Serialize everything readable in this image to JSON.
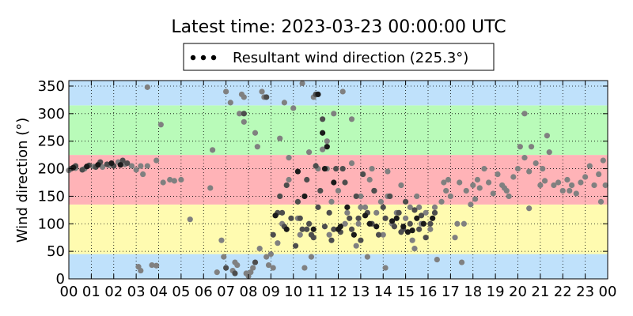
{
  "chart_data": {
    "type": "scatter",
    "title": "Latest time: 2023-03-23 00:00:00 UTC",
    "xlabel": "",
    "ylabel": "Wind direction (°)",
    "x_tick_labels": [
      "00",
      "01",
      "02",
      "03",
      "04",
      "05",
      "06",
      "07",
      "08",
      "09",
      "10",
      "11",
      "12",
      "13",
      "14",
      "15",
      "16",
      "17",
      "18",
      "19",
      "20",
      "21",
      "22",
      "23",
      "00"
    ],
    "xlim_hours": [
      0,
      24
    ],
    "ylim": [
      0,
      360
    ],
    "y_ticks": [
      0,
      50,
      100,
      150,
      200,
      250,
      300,
      350
    ],
    "grid": true,
    "legend": {
      "placement": "top-center",
      "label": "Resultant wind direction (225.3°)"
    },
    "bands": [
      {
        "from": 0,
        "to": 45,
        "color": "#bfe1fb"
      },
      {
        "from": 45,
        "to": 135,
        "color": "#fffbb0"
      },
      {
        "from": 135,
        "to": 225,
        "color": "#ffb3b7"
      },
      {
        "from": 225,
        "to": 315,
        "color": "#b9fbb9"
      },
      {
        "from": 315,
        "to": 360,
        "color": "#bfe1fb"
      }
    ],
    "series": [
      {
        "color": "#808080",
        "points": [
          [
            0.0,
            197
          ],
          [
            0.3,
            201
          ],
          [
            0.7,
            200
          ],
          [
            1.1,
            204
          ],
          [
            1.5,
            203
          ],
          [
            1.8,
            206
          ],
          [
            2.2,
            212
          ],
          [
            2.5,
            208
          ],
          [
            2.8,
            205
          ],
          [
            3.0,
            198
          ],
          [
            3.2,
            205
          ],
          [
            3.3,
            190
          ],
          [
            3.5,
            205
          ],
          [
            3.9,
            215
          ],
          [
            3.1,
            22
          ],
          [
            3.2,
            15
          ],
          [
            3.9,
            24
          ],
          [
            3.7,
            25
          ],
          [
            4.2,
            175
          ],
          [
            4.5,
            180
          ],
          [
            4.7,
            178
          ],
          [
            5.0,
            180
          ],
          [
            4.1,
            280
          ],
          [
            3.5,
            348
          ],
          [
            5.4,
            108
          ],
          [
            6.3,
            165
          ],
          [
            6.4,
            234
          ],
          [
            6.6,
            12
          ],
          [
            6.8,
            70
          ],
          [
            6.9,
            40
          ],
          [
            7.0,
            340
          ],
          [
            7.2,
            320
          ],
          [
            7.3,
            15
          ],
          [
            7.4,
            30
          ],
          [
            7.5,
            25
          ],
          [
            7.6,
            300
          ],
          [
            7.7,
            335
          ],
          [
            7.8,
            330
          ],
          [
            7.9,
            10
          ],
          [
            8.0,
            5
          ],
          [
            8.1,
            12
          ],
          [
            8.2,
            20
          ],
          [
            8.3,
            265
          ],
          [
            8.4,
            240
          ],
          [
            8.5,
            55
          ],
          [
            8.6,
            340
          ],
          [
            8.7,
            330
          ],
          [
            8.8,
            40
          ],
          [
            8.9,
            25
          ],
          [
            9.0,
            45
          ],
          [
            9.1,
            20
          ],
          [
            9.3,
            65
          ],
          [
            9.5,
            100
          ],
          [
            9.6,
            320
          ],
          [
            9.8,
            180
          ],
          [
            10.0,
            310
          ],
          [
            10.2,
            110
          ],
          [
            10.3,
            80
          ],
          [
            10.5,
            20
          ],
          [
            10.7,
            230
          ],
          [
            10.9,
            330
          ],
          [
            11.1,
            200
          ],
          [
            11.3,
            235
          ],
          [
            11.5,
            250
          ],
          [
            11.7,
            140
          ],
          [
            11.8,
            300
          ],
          [
            12.0,
            160
          ],
          [
            12.2,
            340
          ],
          [
            12.4,
            120
          ],
          [
            12.6,
            210
          ],
          [
            12.8,
            60
          ],
          [
            12.9,
            100
          ],
          [
            13.0,
            150
          ],
          [
            13.2,
            130
          ],
          [
            13.4,
            180
          ],
          [
            13.5,
            200
          ],
          [
            13.7,
            120
          ],
          [
            13.9,
            140
          ],
          [
            14.0,
            80
          ],
          [
            14.2,
            150
          ],
          [
            14.4,
            100
          ],
          [
            14.6,
            120
          ],
          [
            14.8,
            170
          ],
          [
            15.0,
            110
          ],
          [
            15.2,
            130
          ],
          [
            15.3,
            70
          ],
          [
            15.5,
            150
          ],
          [
            15.7,
            100
          ],
          [
            15.9,
            120
          ],
          [
            16.1,
            90
          ],
          [
            16.3,
            130
          ],
          [
            16.4,
            35
          ],
          [
            16.6,
            140
          ],
          [
            16.8,
            160
          ],
          [
            17.0,
            150
          ],
          [
            17.2,
            75
          ],
          [
            17.4,
            175
          ],
          [
            17.5,
            30
          ],
          [
            17.7,
            160
          ],
          [
            17.9,
            135
          ],
          [
            18.0,
            170
          ],
          [
            18.2,
            180
          ],
          [
            18.3,
            165
          ],
          [
            18.5,
            200
          ],
          [
            18.7,
            175
          ],
          [
            18.9,
            155
          ],
          [
            19.1,
            190
          ],
          [
            19.3,
            170
          ],
          [
            19.5,
            160
          ],
          [
            19.6,
            150
          ],
          [
            19.8,
            185
          ],
          [
            20.0,
            200
          ],
          [
            20.1,
            240
          ],
          [
            20.3,
            220
          ],
          [
            20.5,
            195
          ],
          [
            20.6,
            240
          ],
          [
            20.8,
            210
          ],
          [
            21.0,
            170
          ],
          [
            21.1,
            200
          ],
          [
            21.3,
            260
          ],
          [
            21.4,
            230
          ],
          [
            21.6,
            170
          ],
          [
            21.8,
            175
          ],
          [
            22.0,
            160
          ],
          [
            22.2,
            180
          ],
          [
            22.4,
            170
          ],
          [
            22.6,
            155
          ],
          [
            22.8,
            175
          ],
          [
            23.0,
            185
          ],
          [
            23.2,
            205
          ],
          [
            23.4,
            170
          ],
          [
            23.6,
            190
          ],
          [
            23.8,
            215
          ],
          [
            23.9,
            170
          ],
          [
            11.5,
            200
          ],
          [
            14.2,
            195
          ],
          [
            15.4,
            55
          ],
          [
            13.0,
            130
          ],
          [
            12.6,
            290
          ],
          [
            10.4,
            355
          ],
          [
            9.4,
            255
          ],
          [
            7.8,
            285
          ],
          [
            16.7,
            175
          ],
          [
            17.6,
            100
          ],
          [
            18.1,
            145
          ],
          [
            19.4,
            165
          ],
          [
            20.3,
            300
          ],
          [
            21.2,
            178
          ],
          [
            22.3,
            160
          ],
          [
            23.7,
            140
          ],
          [
            20.5,
            128
          ],
          [
            16.9,
            180
          ],
          [
            17.3,
            100
          ],
          [
            15.6,
            130
          ],
          [
            14.1,
            20
          ],
          [
            13.3,
            40
          ],
          [
            12.3,
            100
          ],
          [
            11.6,
            80
          ],
          [
            10.8,
            40
          ],
          [
            9.8,
            220
          ]
        ]
      },
      {
        "color": "#4d4d4d",
        "points": [
          [
            0.1,
            200
          ],
          [
            0.3,
            205
          ],
          [
            0.6,
            198
          ],
          [
            0.9,
            206
          ],
          [
            1.2,
            203
          ],
          [
            1.4,
            212
          ],
          [
            1.7,
            208
          ],
          [
            2.0,
            205
          ],
          [
            2.4,
            215
          ],
          [
            2.6,
            210
          ],
          [
            7.0,
            20
          ],
          [
            7.4,
            10
          ],
          [
            7.8,
            300
          ],
          [
            8.3,
            30
          ],
          [
            8.8,
            330
          ],
          [
            9.1,
            80
          ],
          [
            9.3,
            120
          ],
          [
            9.4,
            150
          ],
          [
            9.6,
            95
          ],
          [
            9.7,
            170
          ],
          [
            9.9,
            110
          ],
          [
            10.1,
            60
          ],
          [
            10.2,
            140
          ],
          [
            10.4,
            90
          ],
          [
            10.6,
            180
          ],
          [
            10.7,
            100
          ],
          [
            10.9,
            75
          ],
          [
            11.0,
            205
          ],
          [
            11.1,
            130
          ],
          [
            11.2,
            160
          ],
          [
            11.4,
            95
          ],
          [
            11.6,
            120
          ],
          [
            11.7,
            70
          ],
          [
            11.9,
            200
          ],
          [
            12.1,
            85
          ],
          [
            12.3,
            175
          ],
          [
            12.5,
            110
          ],
          [
            12.6,
            90
          ],
          [
            12.8,
            150
          ],
          [
            13.0,
            70
          ],
          [
            13.1,
            190
          ],
          [
            13.3,
            120
          ],
          [
            13.5,
            100
          ],
          [
            13.6,
            160
          ],
          [
            13.8,
            80
          ],
          [
            14.0,
            130
          ],
          [
            14.1,
            110
          ],
          [
            14.3,
            150
          ],
          [
            14.5,
            95
          ],
          [
            14.7,
            120
          ],
          [
            14.8,
            85
          ],
          [
            15.0,
            140
          ],
          [
            15.2,
            100
          ],
          [
            15.4,
            125
          ],
          [
            15.6,
            90
          ],
          [
            15.7,
            115
          ],
          [
            15.9,
            75
          ],
          [
            16.1,
            100
          ],
          [
            16.3,
            120
          ],
          [
            10.6,
            90
          ],
          [
            11.0,
            335
          ],
          [
            11.3,
            290
          ],
          [
            12.2,
            200
          ],
          [
            13.6,
            160
          ],
          [
            14.9,
            90
          ],
          [
            9.5,
            120
          ],
          [
            10.3,
            110
          ],
          [
            10.8,
            80
          ],
          [
            11.8,
            90
          ],
          [
            12.9,
            110
          ]
        ]
      },
      {
        "color": "#1a1a1a",
        "points": [
          [
            0.2,
            202
          ],
          [
            0.8,
            204
          ],
          [
            1.3,
            207
          ],
          [
            1.9,
            210
          ],
          [
            2.3,
            207
          ],
          [
            9.2,
            115
          ],
          [
            9.7,
            90
          ],
          [
            10.2,
            195
          ],
          [
            10.5,
            150
          ],
          [
            10.9,
            90
          ],
          [
            11.3,
            265
          ],
          [
            11.5,
            240
          ],
          [
            11.8,
            175
          ],
          [
            12.0,
            90
          ],
          [
            12.4,
            130
          ],
          [
            12.7,
            80
          ],
          [
            13.2,
            115
          ],
          [
            13.7,
            95
          ],
          [
            14.4,
            105
          ],
          [
            14.9,
            95
          ],
          [
            15.1,
            85
          ],
          [
            15.5,
            110
          ],
          [
            15.8,
            100
          ],
          [
            16.2,
            110
          ],
          [
            11.1,
            335
          ],
          [
            11.4,
            200
          ],
          [
            12.1,
            95
          ],
          [
            13.4,
            100
          ],
          [
            14.6,
            110
          ],
          [
            15.3,
            88
          ]
        ]
      }
    ]
  }
}
